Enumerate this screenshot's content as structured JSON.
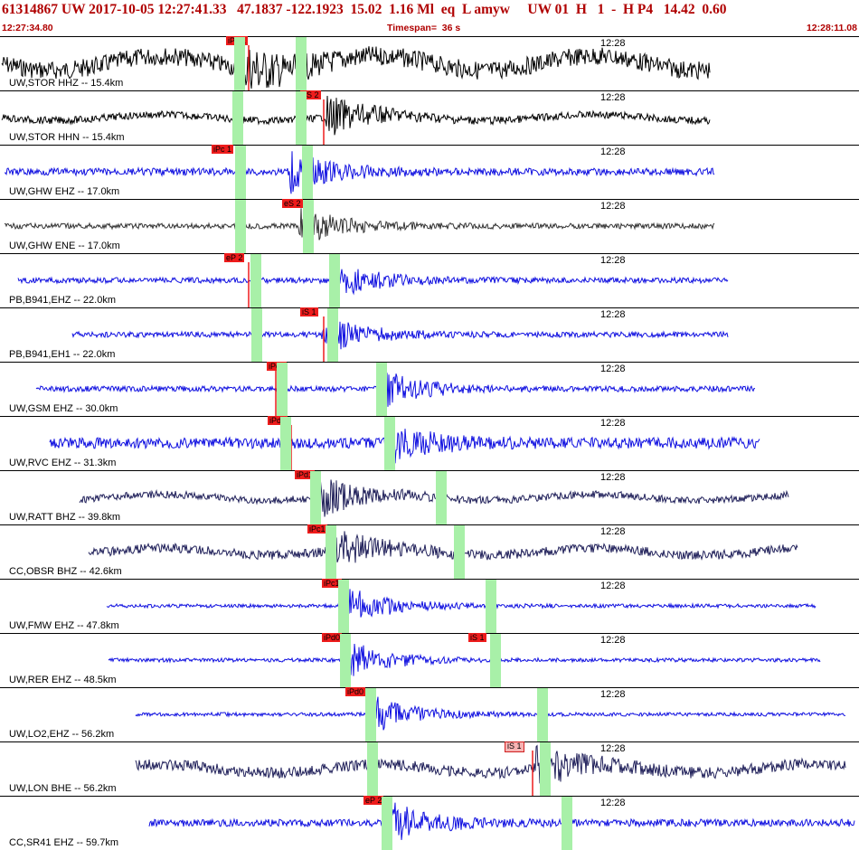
{
  "header": {
    "title": "61314867 UW 2017-10-05 12:27:41.33   47.1837 -122.1923  15.02  1.16 Ml  eq  L amyw     UW 01  H   1  -  H P4   14.42  0.60",
    "start_time": "12:27:34.80",
    "timespan": "Timespan=  36 s",
    "end_time": "12:28:11.08"
  },
  "colors": {
    "header_text": "#b00000",
    "pick_flag": "#ee1c1c",
    "pick_window": "#a8f0a8",
    "trace_blue": "#1010e0",
    "trace_black": "#000000",
    "trace_gray": "#333333",
    "trace_navy": "#20205a"
  },
  "traces": [
    {
      "label": "UW,STOR HHZ -- 15.4km",
      "tick": "12:28",
      "color": "trace_black",
      "picks": [
        {
          "text": "iPc 1",
          "style": "red"
        },
        {
          "text": "",
          "style": "none"
        }
      ]
    },
    {
      "label": "UW,STOR HHN -- 15.4km",
      "tick": "12:28",
      "color": "trace_black",
      "picks": [
        {
          "text": "eS 2",
          "style": "red"
        }
      ]
    },
    {
      "label": "UW,GHW EHZ -- 17.0km",
      "tick": "12:28",
      "color": "trace_blue",
      "picks": [
        {
          "text": "iPc 1",
          "style": "red"
        }
      ]
    },
    {
      "label": "UW,GHW ENE -- 17.0km",
      "tick": "12:28",
      "color": "trace_gray",
      "picks": [
        {
          "text": "eS 2",
          "style": "red"
        }
      ]
    },
    {
      "label": "PB,B941,EHZ -- 22.0km",
      "tick": "12:28",
      "color": "trace_blue",
      "picks": [
        {
          "text": "eP 2",
          "style": "red"
        }
      ]
    },
    {
      "label": "PB,B941,EH1 -- 22.0km",
      "tick": "12:28",
      "color": "trace_blue",
      "picks": [
        {
          "text": "iS 1",
          "style": "red"
        }
      ]
    },
    {
      "label": "UW,GSM EHZ -- 30.0km",
      "tick": "12:28",
      "color": "trace_blue",
      "picks": [
        {
          "text": "iPc1",
          "style": "red"
        }
      ]
    },
    {
      "label": "UW,RVC EHZ -- 31.3km",
      "tick": "12:28",
      "color": "trace_blue",
      "picks": [
        {
          "text": "iPd0",
          "style": "red"
        }
      ]
    },
    {
      "label": "UW,RATT BHZ -- 39.8km",
      "tick": "12:28",
      "color": "trace_navy",
      "picks": [
        {
          "text": "iPd1",
          "style": "red"
        }
      ]
    },
    {
      "label": "CC,OBSR BHZ -- 42.6km",
      "tick": "12:28",
      "color": "trace_navy",
      "picks": [
        {
          "text": "iPc1",
          "style": "red"
        }
      ]
    },
    {
      "label": "UW,FMW EHZ -- 47.8km",
      "tick": "12:28",
      "color": "trace_blue",
      "picks": [
        {
          "text": "iPc1",
          "style": "red"
        }
      ]
    },
    {
      "label": "UW,RER EHZ -- 48.5km",
      "tick": "12:28",
      "color": "trace_blue",
      "picks": [
        {
          "text": "iPd0",
          "style": "red"
        },
        {
          "text": "iS 1",
          "style": "red"
        }
      ]
    },
    {
      "label": "UW,LO2,EHZ -- 56.2km",
      "tick": "12:28",
      "color": "trace_blue",
      "picks": [
        {
          "text": "iPd0",
          "style": "red"
        }
      ]
    },
    {
      "label": "UW,LON BHE -- 56.2km",
      "tick": "12:28",
      "color": "trace_navy",
      "picks": [
        {
          "text": "iS 1",
          "style": "light"
        }
      ]
    },
    {
      "label": "CC,SR41 EHZ -- 59.7km",
      "tick": "12:28",
      "color": "trace_blue",
      "picks": [
        {
          "text": "eP 2",
          "style": "red"
        }
      ]
    }
  ]
}
